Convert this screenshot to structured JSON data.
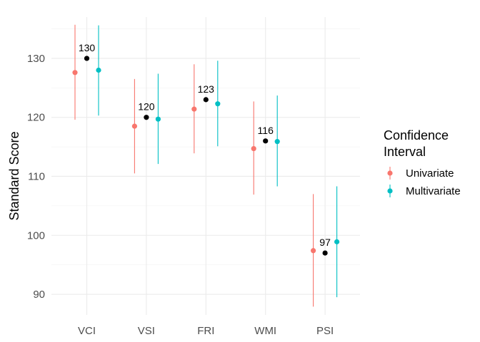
{
  "chart_data": {
    "type": "scatter",
    "title": "",
    "xlabel": "",
    "ylabel": "Standard Score",
    "ylim": [
      86.5,
      137
    ],
    "y_ticks": [
      90,
      100,
      110,
      120,
      130
    ],
    "grid": true,
    "legend_position": "right",
    "categories": [
      "VCI",
      "VSI",
      "FRI",
      "WMI",
      "PSI"
    ],
    "observed_scores": [
      130,
      120,
      123,
      116,
      97
    ],
    "observed_color": "#000000",
    "legend_title": "Confidence Interval",
    "series": [
      {
        "name": "Univariate",
        "color": "#F8766D",
        "estimates": [
          127.6,
          118.5,
          121.4,
          114.7,
          97.4
        ],
        "lower": [
          119.6,
          110.5,
          113.9,
          106.9,
          87.9
        ],
        "upper": [
          135.7,
          126.5,
          129.0,
          122.7,
          107.0
        ]
      },
      {
        "name": "Multivariate",
        "color": "#00BFC4",
        "estimates": [
          128.0,
          119.7,
          122.3,
          115.9,
          98.9
        ],
        "lower": [
          120.3,
          112.1,
          115.1,
          108.3,
          89.5
        ],
        "upper": [
          135.6,
          127.4,
          129.6,
          123.7,
          108.3
        ]
      }
    ]
  }
}
